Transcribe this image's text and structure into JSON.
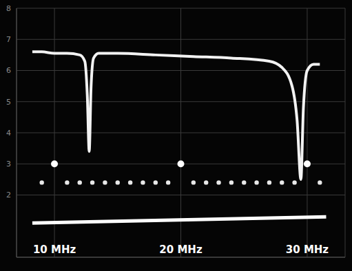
{
  "chart_data": {
    "type": "line",
    "xlim": [
      7,
      33
    ],
    "xticks": [
      {
        "value": 10,
        "label": "10 MHz"
      },
      {
        "value": 20,
        "label": "20 MHz"
      },
      {
        "value": 30,
        "label": "30 MHz"
      }
    ],
    "ylim": [
      0,
      8
    ],
    "yticks": [
      2,
      3,
      4,
      5,
      6,
      7,
      8
    ],
    "grid": true,
    "series": [
      {
        "type": "line",
        "color": "#f2f2f2",
        "x": [
          8.25,
          9,
          10,
          11,
          12,
          12.4,
          12.6,
          12.75,
          12.9,
          13.1,
          13.5,
          15,
          18,
          21,
          24,
          27,
          28,
          28.8,
          29.2,
          29.5,
          29.7,
          30,
          30.5,
          31
        ],
        "values": [
          6.6,
          6.6,
          6.55,
          6.55,
          6.5,
          6.3,
          5.2,
          3.4,
          5.5,
          6.4,
          6.55,
          6.55,
          6.5,
          6.45,
          6.4,
          6.3,
          6.1,
          5.5,
          4.4,
          2.5,
          4.8,
          6.0,
          6.2,
          6.2
        ]
      },
      {
        "type": "line",
        "color": "#ffffff",
        "x": [
          8.25,
          31.5
        ],
        "values": [
          1.1,
          1.3
        ]
      },
      {
        "type": "scatter",
        "color": "#e8e8e8",
        "marker": "circle",
        "x": [
          9,
          11,
          12,
          13,
          14,
          15,
          16,
          17,
          18,
          19,
          21,
          22,
          23,
          24,
          25,
          26,
          27,
          28,
          29,
          31
        ],
        "values": [
          2.4,
          2.4,
          2.4,
          2.4,
          2.4,
          2.4,
          2.4,
          2.4,
          2.4,
          2.4,
          2.4,
          2.4,
          2.4,
          2.4,
          2.4,
          2.4,
          2.4,
          2.4,
          2.4,
          2.4
        ]
      },
      {
        "type": "scatter",
        "color": "#ffffff",
        "marker": "circle",
        "x": [
          10,
          20,
          30
        ],
        "values": [
          3.0,
          3.0,
          3.0
        ]
      }
    ]
  }
}
